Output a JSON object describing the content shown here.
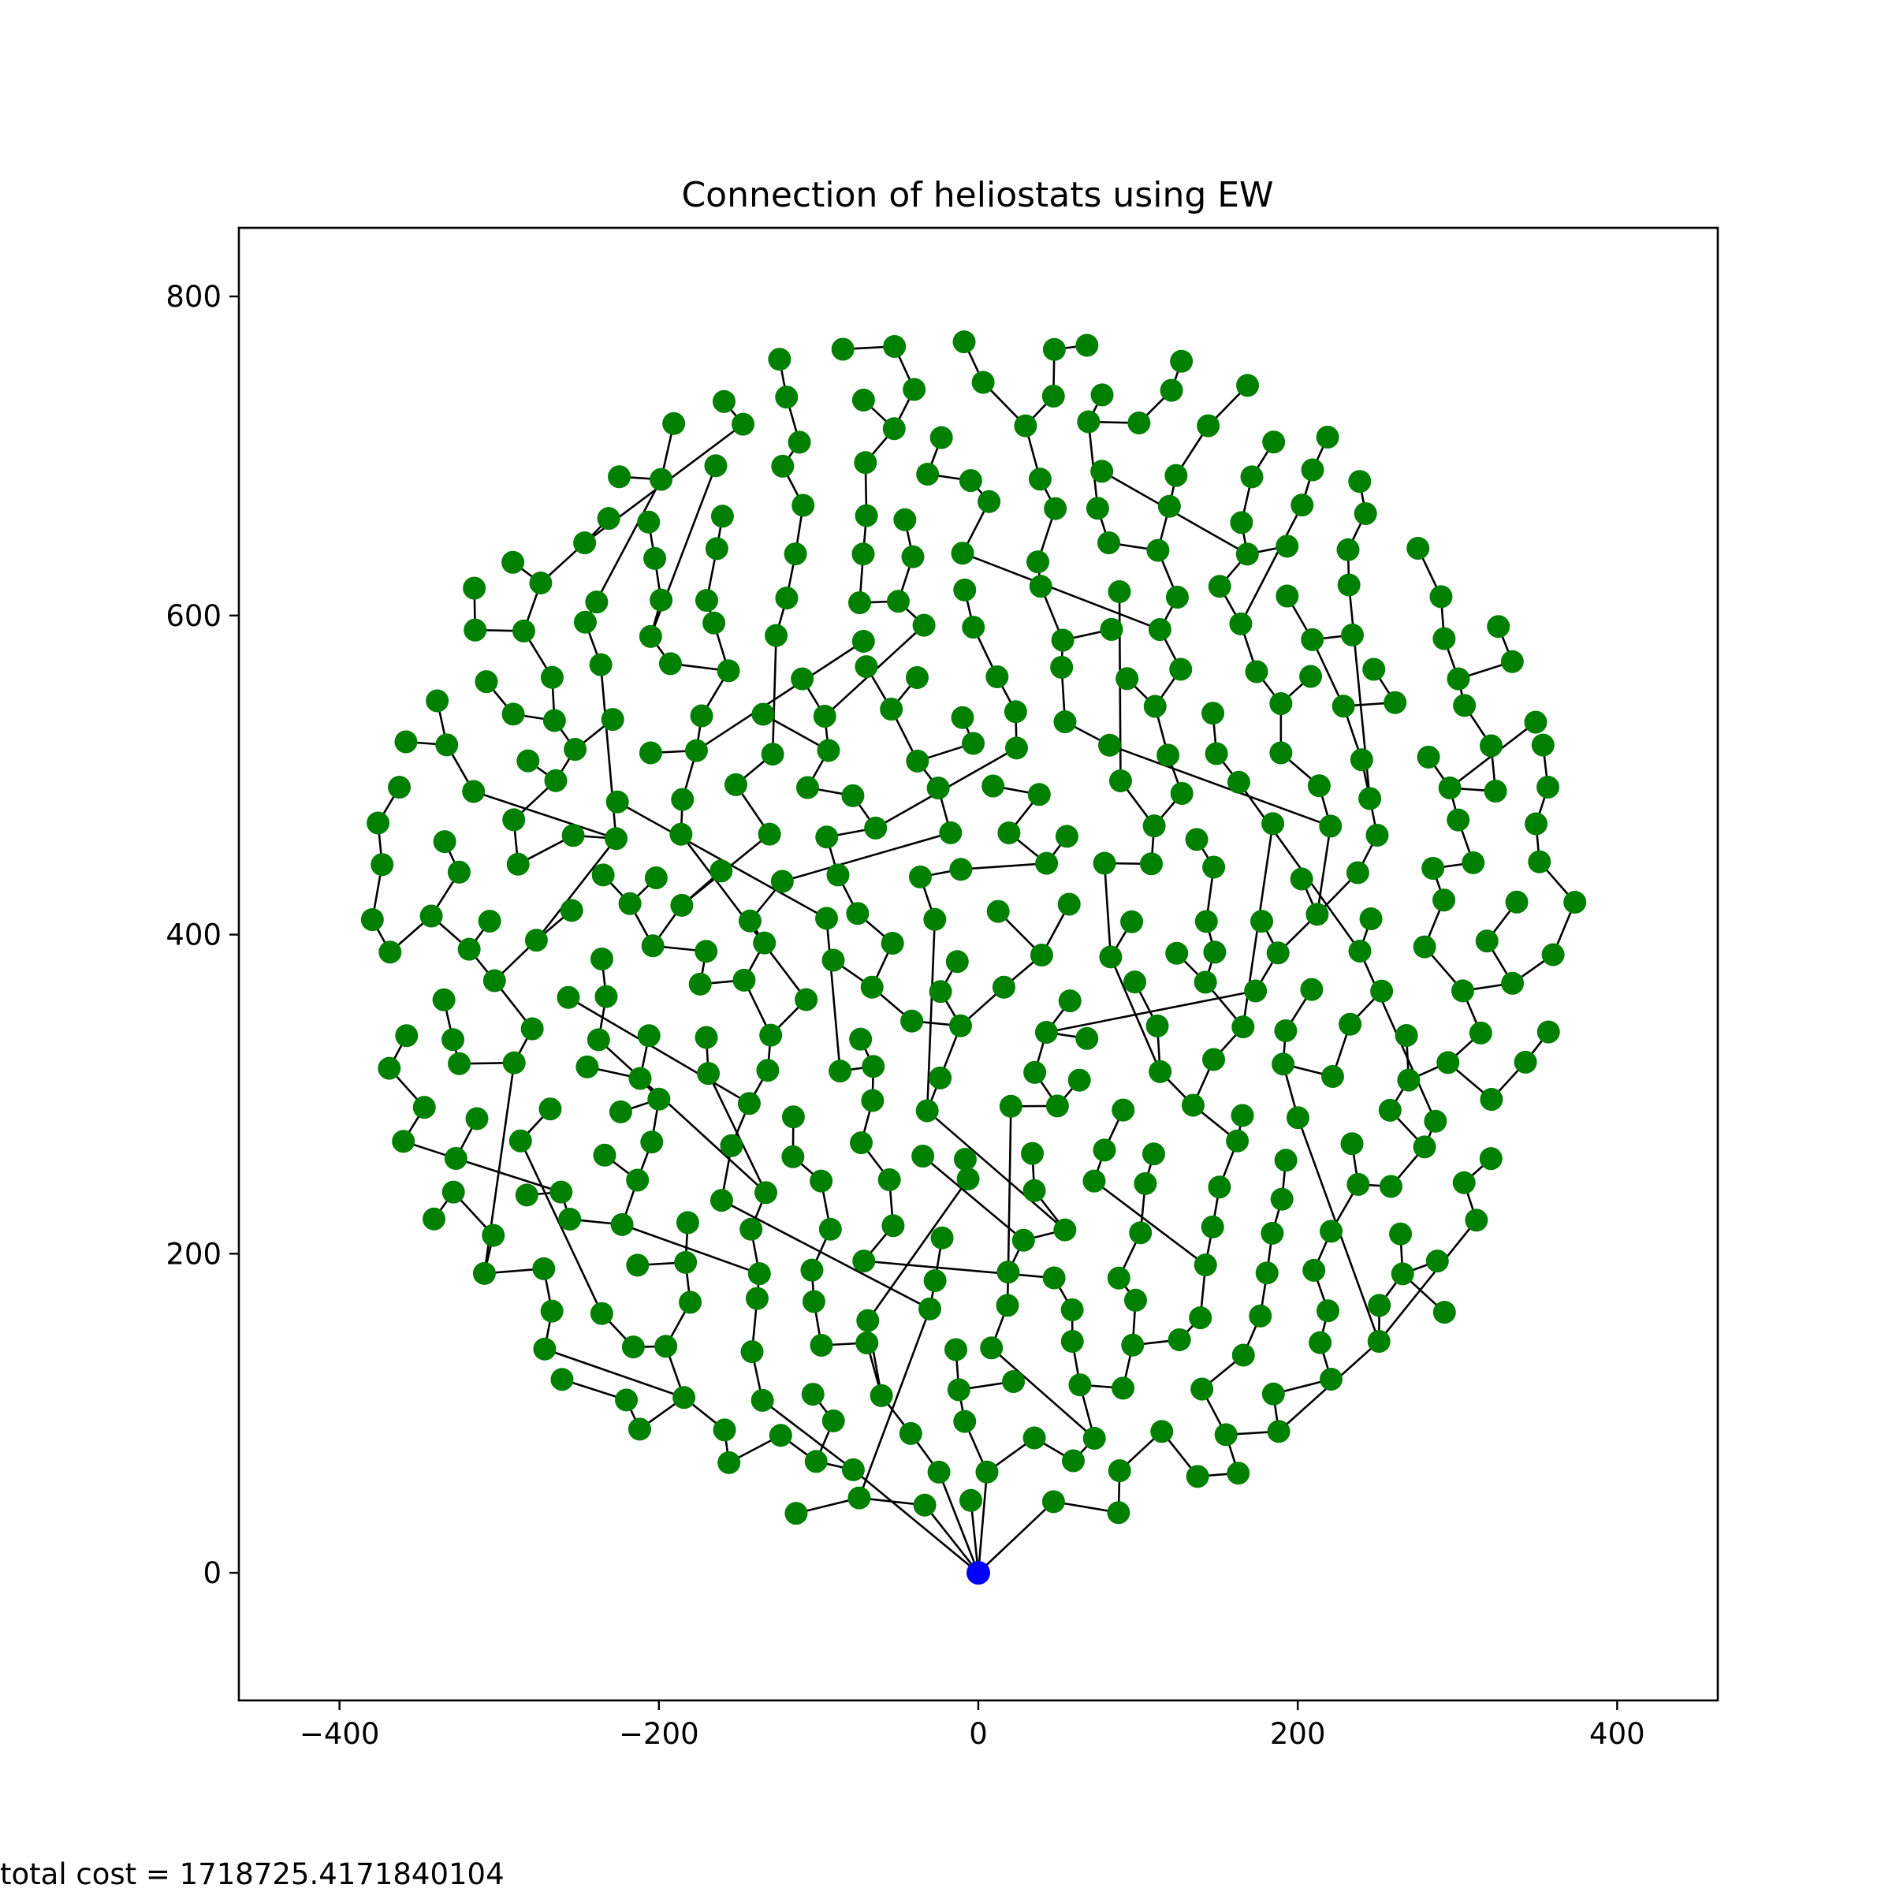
{
  "chart_data": {
    "type": "scatter",
    "title": "Connection of heliostats using EW",
    "xlabel": "",
    "ylabel": "",
    "xlim": [
      -463,
      463
    ],
    "ylim": [
      -80,
      843
    ],
    "xticks": [
      -400,
      -200,
      0,
      200,
      400
    ],
    "yticks": [
      0,
      200,
      400,
      600,
      800
    ],
    "xtick_labels": [
      "−400",
      "−200",
      "0",
      "200",
      "400"
    ],
    "ytick_labels": [
      "0",
      "200",
      "400",
      "600",
      "800"
    ],
    "grid": false,
    "legend": "none",
    "colors": {
      "heliostat": "#008000",
      "receiver": "#0000ff",
      "connection": "#000000"
    },
    "receiver": {
      "x": 0,
      "y": 0
    },
    "field": {
      "center_x": 0,
      "center_y": 400,
      "radius": 385,
      "min_radius_from_receiver": 40,
      "approx_heliostat_count": 600
    },
    "connections_shown": "edges linking each heliostat to a neighbouring heliostat, trees rooted at the receiver"
  },
  "footer": {
    "total_cost": "total cost = 1718725.4171840104"
  }
}
